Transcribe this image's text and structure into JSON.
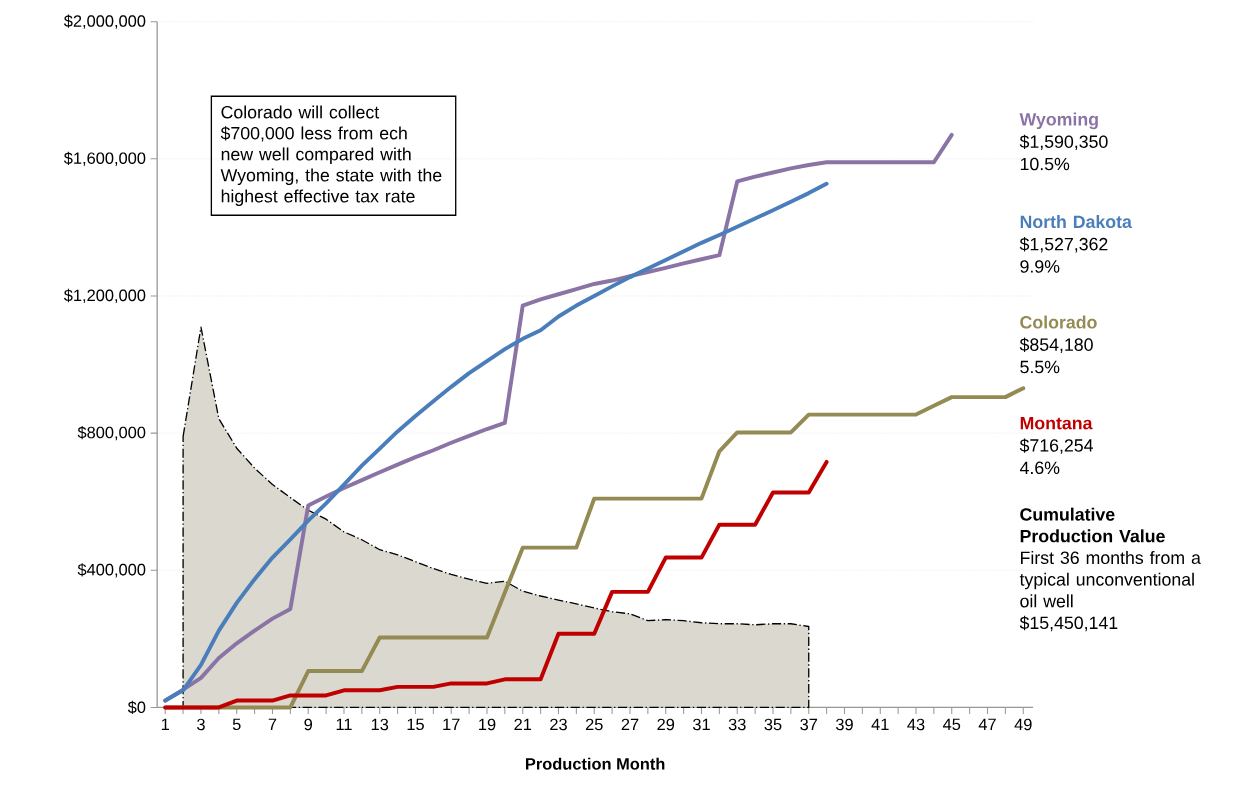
{
  "chart_data": {
    "type": "line",
    "xlabel": "Production Month",
    "xlim": [
      0.55,
      49.55
    ],
    "xticks": [
      1,
      3,
      5,
      7,
      9,
      11,
      13,
      15,
      17,
      19,
      21,
      23,
      25,
      27,
      29,
      31,
      33,
      35,
      37,
      39,
      41,
      43,
      45,
      47,
      49
    ],
    "ylim": [
      0,
      2000000
    ],
    "yticks": [
      {
        "value": 0,
        "label": "$0"
      },
      {
        "value": 400000,
        "label": "$400,000"
      },
      {
        "value": 800000,
        "label": "$800,000"
      },
      {
        "value": 1200000,
        "label": "$1,200,000"
      },
      {
        "value": 1600000,
        "label": "$1,600,000"
      },
      {
        "value": 2000000,
        "label": "$2,000,000"
      }
    ],
    "grid": "y",
    "series": [
      {
        "type": "area",
        "color": "#dad8cf",
        "line_style": "dashed",
        "x": [
          2,
          3,
          4,
          5,
          6,
          7,
          8,
          9,
          10,
          11,
          12,
          13,
          14,
          15,
          16,
          17,
          18,
          19,
          20,
          21,
          22,
          23,
          24,
          25,
          26,
          27,
          28,
          29,
          30,
          31,
          32,
          33,
          34,
          35,
          36,
          37
        ],
        "values": [
          790000,
          1109000,
          842000,
          756000,
          698000,
          650000,
          612000,
          575000,
          549000,
          512000,
          489000,
          460000,
          445000,
          425000,
          405000,
          388000,
          374000,
          362000,
          368000,
          339000,
          325000,
          313000,
          302000,
          290000,
          279000,
          273000,
          253000,
          256000,
          253000,
          247000,
          244000,
          244000,
          241000,
          244000,
          244000,
          236000
        ]
      },
      {
        "name": "Wyoming",
        "color": "#8a74a6",
        "x": [
          1,
          2,
          3,
          4,
          5,
          6,
          7,
          8,
          9,
          10,
          11,
          12,
          13,
          14,
          15,
          16,
          17,
          18,
          19,
          20,
          21,
          22,
          23,
          24,
          25,
          26,
          27,
          28,
          29,
          30,
          31,
          32,
          33,
          34,
          35,
          36,
          37,
          38,
          39,
          40,
          41,
          42,
          43,
          44,
          45
        ],
        "values": [
          20000,
          52000,
          86000,
          144000,
          187000,
          224000,
          259000,
          287000,
          589000,
          615000,
          640000,
          663000,
          686000,
          708000,
          730000,
          750000,
          772000,
          792000,
          812000,
          830000,
          1172000,
          1190000,
          1205000,
          1220000,
          1235000,
          1245000,
          1258000,
          1270000,
          1282000,
          1295000,
          1307000,
          1319000,
          1534000,
          1548000,
          1560000,
          1572000,
          1582000,
          1590000,
          1590000,
          1590000,
          1590000,
          1590000,
          1590000,
          1590000,
          1670000
        ]
      },
      {
        "name": "North Dakota",
        "color": "#4a7ebb",
        "x": [
          1,
          2,
          3,
          4,
          5,
          6,
          7,
          8,
          9,
          10,
          11,
          12,
          13,
          14,
          15,
          16,
          17,
          18,
          19,
          20,
          21,
          22,
          23,
          24,
          25,
          26,
          27,
          28,
          29,
          30,
          31,
          32,
          33,
          34,
          35,
          36,
          37,
          38
        ],
        "values": [
          20000,
          50000,
          124000,
          224000,
          305000,
          374000,
          437000,
          490000,
          545000,
          595000,
          650000,
          705000,
          755000,
          805000,
          850000,
          893000,
          935000,
          975000,
          1010000,
          1045000,
          1075000,
          1100000,
          1140000,
          1172000,
          1200000,
          1228000,
          1255000,
          1280000,
          1305000,
          1330000,
          1355000,
          1378000,
          1402000,
          1426000,
          1450000,
          1475000,
          1500000,
          1527000
        ]
      },
      {
        "name": "Colorado",
        "color": "#948a54",
        "x": [
          1,
          2,
          3,
          4,
          5,
          6,
          7,
          8,
          9,
          10,
          11,
          12,
          13,
          14,
          15,
          16,
          17,
          18,
          19,
          20,
          21,
          22,
          23,
          24,
          25,
          26,
          27,
          28,
          29,
          30,
          31,
          32,
          33,
          34,
          35,
          36,
          37,
          38,
          39,
          40,
          41,
          42,
          43,
          44,
          45,
          46,
          47,
          48,
          49
        ],
        "values": [
          0,
          0,
          0,
          0,
          0,
          0,
          0,
          0,
          106000,
          106000,
          106000,
          106000,
          204000,
          204000,
          204000,
          204000,
          204000,
          204000,
          204000,
          335000,
          466000,
          466000,
          466000,
          466000,
          609000,
          609000,
          609000,
          609000,
          609000,
          609000,
          609000,
          747000,
          802000,
          802000,
          802000,
          802000,
          854000,
          854000,
          854000,
          854000,
          854000,
          854000,
          854000,
          880000,
          905000,
          905000,
          905000,
          905000,
          931000
        ]
      },
      {
        "name": "Montana",
        "color": "#c00000",
        "x": [
          1,
          2,
          3,
          4,
          5,
          6,
          7,
          8,
          9,
          10,
          11,
          12,
          13,
          14,
          15,
          16,
          17,
          18,
          19,
          20,
          21,
          22,
          23,
          24,
          25,
          26,
          27,
          28,
          29,
          30,
          31,
          32,
          33,
          34,
          35,
          36,
          37,
          38
        ],
        "values": [
          0,
          0,
          0,
          0,
          20000,
          20000,
          20000,
          35000,
          35000,
          35000,
          50000,
          50000,
          50000,
          60000,
          60000,
          60000,
          70000,
          70000,
          70000,
          82000,
          82000,
          82000,
          215000,
          215000,
          215000,
          337000,
          337000,
          337000,
          437000,
          437000,
          437000,
          533000,
          533000,
          533000,
          627000,
          627000,
          627000,
          716000
        ]
      }
    ],
    "annotations": [
      "Colorado will collect $700,000 less from ech new well compared with Wyoming, the state with the highest effective tax rate",
      "$1,590,350",
      "10.5%",
      "$1,527,362",
      "9.9%",
      "$854,180",
      "5.5%",
      "$716,254",
      "4.6%",
      "Cumulative Production Value",
      "First 36 months from a typical unconventional oil well",
      "$15,450,141"
    ]
  }
}
